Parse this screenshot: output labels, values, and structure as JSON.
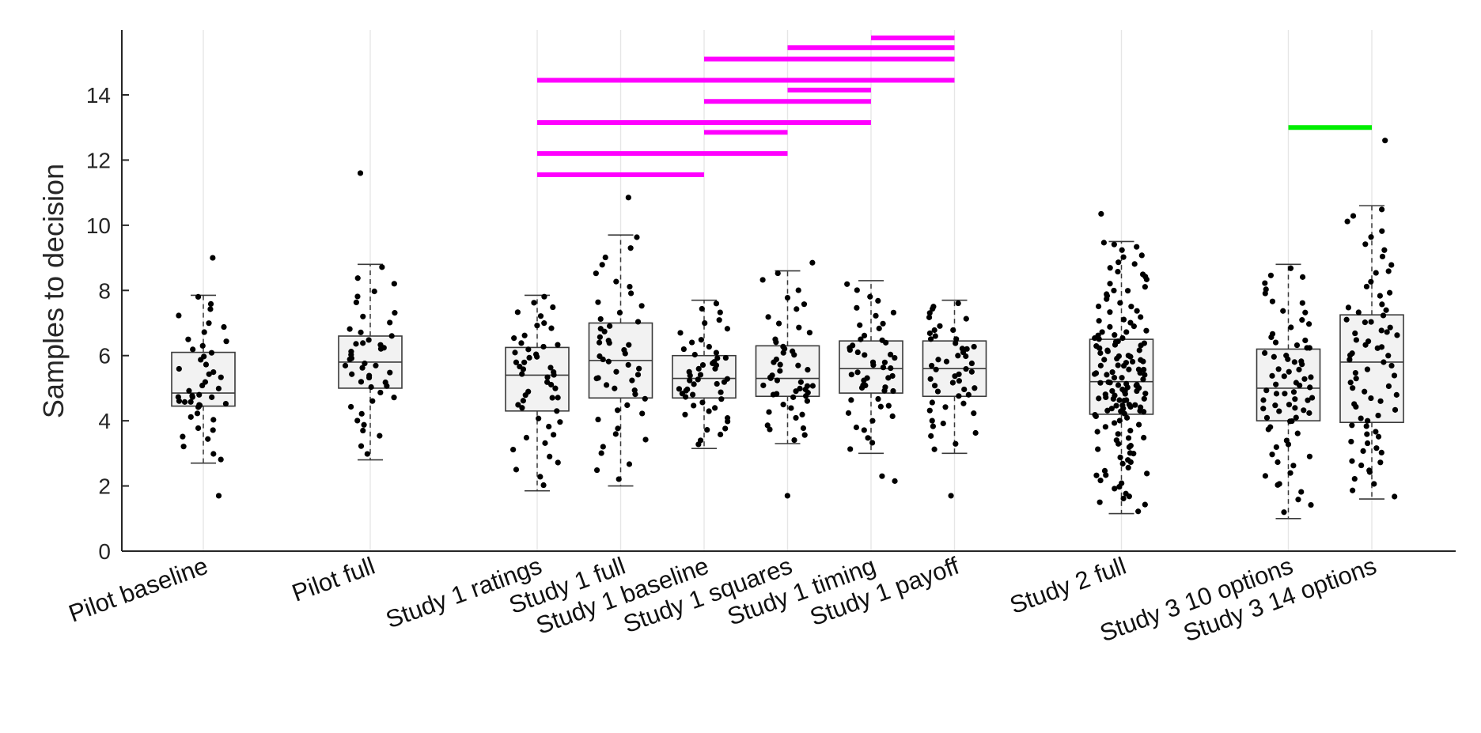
{
  "chart_data": {
    "type": "boxplot",
    "ylabel": "Samples to decision",
    "ylim": [
      0,
      16
    ],
    "yticks": [
      0,
      2,
      4,
      6,
      8,
      10,
      12,
      14
    ],
    "grid": "vertical-at-categories",
    "categories": [
      "Pilot baseline",
      "Pilot full",
      "Study 1 ratings",
      "Study 1 full",
      "Study 1 baseline",
      "Study 1 squares",
      "Study 1 timing",
      "Study 1 payoff",
      "Study 2 full",
      "Study 3 10 options",
      "Study 3 14 options"
    ],
    "positions": [
      1,
      2,
      3,
      3.5,
      4,
      4.5,
      5,
      5.5,
      6.5,
      7.5,
      8
    ],
    "boxes": [
      {
        "category": "Pilot baseline",
        "whisker_low": 2.7,
        "q1": 4.45,
        "median": 4.85,
        "q3": 6.1,
        "whisker_high": 7.85,
        "outliers": [
          1.7,
          9.0
        ],
        "n": 45
      },
      {
        "category": "Pilot full",
        "whisker_low": 2.8,
        "q1": 5.0,
        "median": 5.8,
        "q3": 6.6,
        "whisker_high": 8.8,
        "outliers": [
          11.6
        ],
        "n": 45
      },
      {
        "category": "Study 1 ratings",
        "whisker_low": 1.85,
        "q1": 4.3,
        "median": 5.4,
        "q3": 6.25,
        "whisker_high": 7.85,
        "outliers": [],
        "n": 50
      },
      {
        "category": "Study 1 full",
        "whisker_low": 2.0,
        "q1": 4.7,
        "median": 5.85,
        "q3": 7.0,
        "whisker_high": 9.7,
        "outliers": [
          10.85
        ],
        "n": 50
      },
      {
        "category": "Study 1 baseline",
        "whisker_low": 3.15,
        "q1": 4.7,
        "median": 5.3,
        "q3": 6.0,
        "whisker_high": 7.7,
        "outliers": [],
        "n": 50
      },
      {
        "category": "Study 1 squares",
        "whisker_low": 3.3,
        "q1": 4.75,
        "median": 5.3,
        "q3": 6.3,
        "whisker_high": 8.6,
        "outliers": [
          1.7,
          8.85
        ],
        "n": 50
      },
      {
        "category": "Study 1 timing",
        "whisker_low": 3.0,
        "q1": 4.85,
        "median": 5.6,
        "q3": 6.45,
        "whisker_high": 8.3,
        "outliers": [
          2.15,
          2.3
        ],
        "n": 50
      },
      {
        "category": "Study 1 payoff",
        "whisker_low": 3.0,
        "q1": 4.75,
        "median": 5.6,
        "q3": 6.45,
        "whisker_high": 7.7,
        "outliers": [
          1.7
        ],
        "n": 50
      },
      {
        "category": "Study 2 full",
        "whisker_low": 1.15,
        "q1": 4.2,
        "median": 5.2,
        "q3": 6.5,
        "whisker_high": 9.5,
        "outliers": [
          10.35
        ],
        "n": 150
      },
      {
        "category": "Study 3 10 options",
        "whisker_low": 1.0,
        "q1": 4.0,
        "median": 5.0,
        "q3": 6.2,
        "whisker_high": 8.8,
        "outliers": [],
        "n": 75
      },
      {
        "category": "Study 3 14 options",
        "whisker_low": 1.6,
        "q1": 3.95,
        "median": 5.8,
        "q3": 7.25,
        "whisker_high": 10.6,
        "outliers": [
          12.6
        ],
        "n": 75
      }
    ],
    "significance_bars": [
      {
        "from": 3,
        "to": 4,
        "y": 11.55,
        "color": "#ff00ff"
      },
      {
        "from": 3,
        "to": 4.5,
        "y": 12.2,
        "color": "#ff00ff"
      },
      {
        "from": 4,
        "to": 4.5,
        "y": 12.85,
        "color": "#ff00ff"
      },
      {
        "from": 3,
        "to": 5,
        "y": 13.15,
        "color": "#ff00ff"
      },
      {
        "from": 4,
        "to": 5,
        "y": 13.8,
        "color": "#ff00ff"
      },
      {
        "from": 4.5,
        "to": 5,
        "y": 14.15,
        "color": "#ff00ff"
      },
      {
        "from": 3,
        "to": 5.5,
        "y": 14.45,
        "color": "#ff00ff"
      },
      {
        "from": 4,
        "to": 5.5,
        "y": 15.1,
        "color": "#ff00ff"
      },
      {
        "from": 4.5,
        "to": 5.5,
        "y": 15.45,
        "color": "#ff00ff"
      },
      {
        "from": 5,
        "to": 5.5,
        "y": 15.75,
        "color": "#ff00ff"
      },
      {
        "from": 7.5,
        "to": 8,
        "y": 13.0,
        "color": "#00ee00"
      }
    ],
    "point_color": "#000000",
    "box_fill": "#f2f2f2"
  }
}
